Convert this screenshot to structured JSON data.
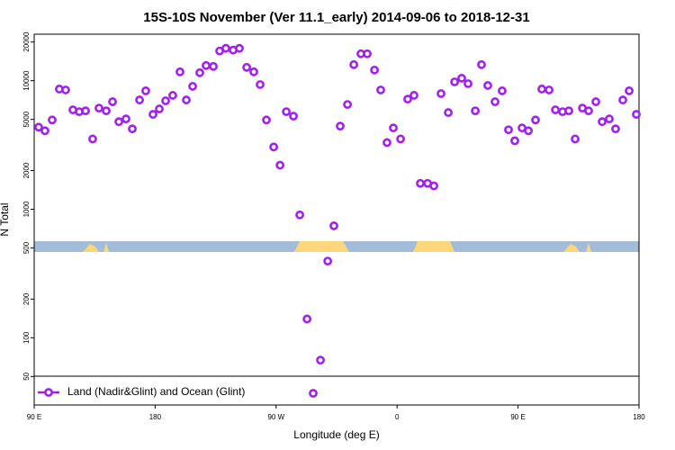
{
  "chart_data": {
    "type": "scatter",
    "title": "15S-10S November (Ver 11.1_early)   2014-09-06 to 2018-12-31",
    "x_label": "Longitude (deg E)",
    "y_label": "N Total",
    "xlim": [
      90,
      540
    ],
    "xticks": [
      {
        "value": 90,
        "label": "90 E"
      },
      {
        "value": 180,
        "label": "180"
      },
      {
        "value": 270,
        "label": "90 W"
      },
      {
        "value": 360,
        "label": "0"
      },
      {
        "value": 450,
        "label": "90 E"
      },
      {
        "value": 540,
        "label": "180"
      }
    ],
    "ylim": [
      30,
      23000
    ],
    "y_scale": "log",
    "yticks": [
      50,
      100,
      200,
      500,
      1000,
      2000,
      5000,
      10000,
      20000
    ],
    "legend": "bottom-left",
    "series": [
      {
        "name": "Land (Nadir&Glint) and Ocean (Glint)",
        "color": "#a020f0",
        "x": [
          93.3,
          98.0,
          103.4,
          108.7,
          113.4,
          118.8,
          123.5,
          128.2,
          133.5,
          138.2,
          143.6,
          148.3,
          153.0,
          158.3,
          163.0,
          168.4,
          173.0,
          178.4,
          183.1,
          187.8,
          193.1,
          198.5,
          203.2,
          207.9,
          213.2,
          217.9,
          223.3,
          228.0,
          232.6,
          238.0,
          242.7,
          248.1,
          253.4,
          258.1,
          262.8,
          268.2,
          272.9,
          277.6,
          282.9,
          287.6,
          293.0,
          297.6,
          303.0,
          308.4,
          313.0,
          317.7,
          323.1,
          327.8,
          333.1,
          337.8,
          343.2,
          347.8,
          352.5,
          357.2,
          362.6,
          367.9,
          372.6,
          377.3,
          382.7,
          387.4,
          392.7,
          398.1,
          402.8,
          408.1,
          412.8,
          418.2,
          422.8,
          427.5,
          432.9,
          438.2,
          442.9,
          447.6,
          453.0,
          457.7,
          463.0,
          467.7,
          473.1,
          477.8,
          483.1,
          487.8,
          492.5,
          497.9,
          502.5,
          507.9,
          512.6,
          517.9,
          522.6,
          528.0,
          532.7,
          538.0
        ],
        "values": [
          4350,
          4080,
          4950,
          8610,
          8470,
          5930,
          5740,
          5830,
          3520,
          6120,
          5830,
          6860,
          4800,
          5040,
          4220,
          7080,
          8340,
          5470,
          6030,
          6970,
          7690,
          11720,
          7080,
          9040,
          11530,
          13120,
          12910,
          17020,
          17860,
          17300,
          17860,
          12700,
          11720,
          9330,
          4950,
          3050,
          2200,
          5740,
          5300,
          904,
          140,
          37,
          67,
          395,
          743,
          4430,
          6530,
          13330,
          16190,
          16190,
          12100,
          8470,
          3300,
          4290,
          3520,
          7190,
          7690,
          1590,
          1590,
          1520,
          7940,
          5650,
          9790,
          10450,
          9480,
          5830,
          13330,
          9180,
          6860,
          8340,
          4150,
          3410,
          4290,
          4080,
          4950,
          8610,
          8470,
          5930,
          5740,
          5830,
          3520,
          6120,
          5830,
          6860,
          4800,
          5040,
          4220,
          7080,
          8340,
          5470
        ]
      }
    ]
  }
}
